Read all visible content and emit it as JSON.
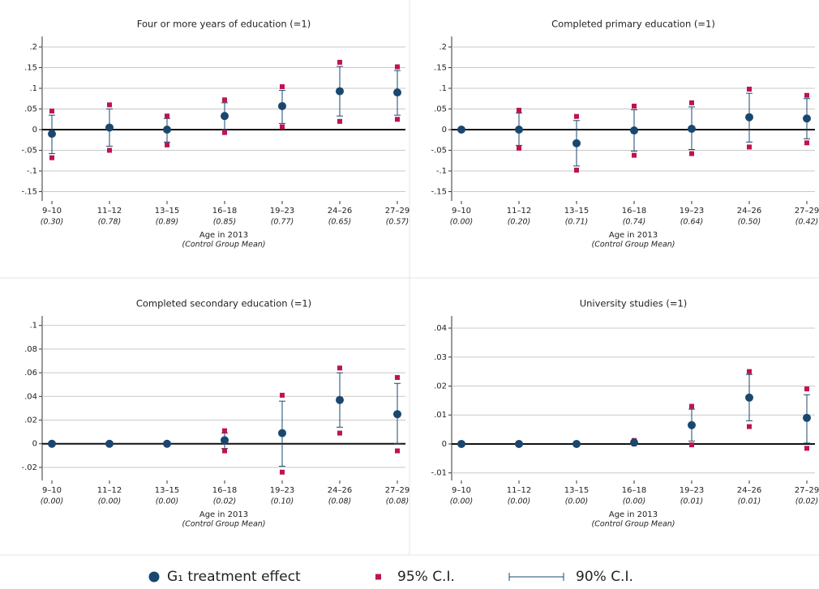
{
  "legend": [
    {
      "name": "G₁ treatment effect",
      "color": "#1a476f"
    },
    {
      "name": "95% C.I.",
      "color": "#c0134f"
    },
    {
      "name": "90% C.I.",
      "color": "#1a476f"
    }
  ],
  "chart_data": [
    {
      "type": "errorbar",
      "title": "Four or more years of education (=1)",
      "categories": [
        "9–10",
        "11–12",
        "13–15",
        "16–18",
        "19–23",
        "24–26",
        "27–29"
      ],
      "sublabels": [
        "(0.30)",
        "(0.78)",
        "(0.89)",
        "(0.85)",
        "(0.77)",
        "(0.65)",
        "(0.57)"
      ],
      "xlabel": "Age in 2013",
      "xlabel_note": "(Control Group Mean)",
      "estimate": [
        -0.01,
        0.005,
        0.0,
        0.033,
        0.057,
        0.093,
        0.09
      ],
      "ci95_low": [
        -0.068,
        -0.05,
        -0.037,
        -0.007,
        0.007,
        0.02,
        0.025
      ],
      "ci95_high": [
        0.045,
        0.06,
        0.033,
        0.072,
        0.104,
        0.163,
        0.152
      ],
      "ci90_low": [
        -0.058,
        -0.04,
        -0.03,
        0.0,
        0.015,
        0.033,
        0.035
      ],
      "ci90_high": [
        0.035,
        0.05,
        0.027,
        0.065,
        0.095,
        0.153,
        0.143
      ],
      "ylim": [
        -0.1725,
        0.2255
      ],
      "yticks": [
        {
          "value": 0.2,
          "label": ".2"
        },
        {
          "value": 0.15,
          "label": ".15"
        },
        {
          "value": 0.1,
          "label": ".1"
        },
        {
          "value": 0.05,
          "label": ".05"
        },
        0,
        {
          "value": -0.05,
          "label": "-.05"
        },
        {
          "value": -0.1,
          "label": "-.1"
        },
        {
          "value": -0.15,
          "label": "-.15"
        }
      ],
      "grid": true
    },
    {
      "type": "errorbar",
      "title": "Completed primary education (=1)",
      "categories": [
        "9–10",
        "11–12",
        "13–15",
        "16–18",
        "19–23",
        "24–26",
        "27–29"
      ],
      "sublabels": [
        "(0.00)",
        "(0.20)",
        "(0.71)",
        "(0.74)",
        "(0.64)",
        "(0.50)",
        "(0.42)"
      ],
      "xlabel": "Age in 2013",
      "xlabel_note": "(Control Group Mean)",
      "estimate": [
        0,
        0.0,
        -0.033,
        -0.002,
        0.002,
        0.03,
        0.027
      ],
      "ci95_low": [
        0,
        -0.045,
        -0.098,
        -0.062,
        -0.058,
        -0.042,
        -0.032
      ],
      "ci95_high": [
        0,
        0.047,
        0.032,
        0.057,
        0.065,
        0.098,
        0.083
      ],
      "ci90_low": [
        0,
        -0.038,
        -0.088,
        -0.052,
        -0.048,
        -0.03,
        -0.022
      ],
      "ci90_high": [
        0,
        0.04,
        0.022,
        0.048,
        0.055,
        0.088,
        0.075
      ],
      "ylim": [
        -0.1725,
        0.2255
      ],
      "yticks": [
        {
          "value": 0.2,
          "label": ".2"
        },
        {
          "value": 0.15,
          "label": ".15"
        },
        {
          "value": 0.1,
          "label": ".1"
        },
        {
          "value": 0.05,
          "label": ".05"
        },
        0,
        {
          "value": -0.05,
          "label": "-.05"
        },
        {
          "value": -0.1,
          "label": "-.1"
        },
        {
          "value": -0.15,
          "label": "-.15"
        }
      ],
      "grid": true
    },
    {
      "type": "errorbar",
      "title": "Completed secondary education (=1)",
      "categories": [
        "9–10",
        "11–12",
        "13–15",
        "16–18",
        "19–23",
        "24–26",
        "27–29"
      ],
      "sublabels": [
        "(0.00)",
        "(0.00)",
        "(0.00)",
        "(0.02)",
        "(0.10)",
        "(0.08)",
        "(0.08)"
      ],
      "xlabel": "Age in 2013",
      "xlabel_note": "(Control Group Mean)",
      "estimate": [
        0,
        0,
        0,
        0.003,
        0.009,
        0.037,
        0.025
      ],
      "ci95_low": [
        0,
        0,
        0,
        -0.006,
        -0.024,
        0.009,
        -0.006
      ],
      "ci95_high": [
        0,
        0,
        0,
        0.011,
        0.041,
        0.064,
        0.056
      ],
      "ci90_low": [
        0,
        0,
        0,
        -0.004,
        -0.019,
        0.014,
        0.0
      ],
      "ci90_high": [
        0,
        0,
        0,
        0.009,
        0.036,
        0.06,
        0.051
      ],
      "ylim": [
        -0.031,
        0.108
      ],
      "yticks": [
        {
          "value": 0.1,
          "label": ".1"
        },
        {
          "value": 0.08,
          "label": ".08"
        },
        {
          "value": 0.06,
          "label": ".06"
        },
        {
          "value": 0.04,
          "label": ".04"
        },
        {
          "value": 0.02,
          "label": ".02"
        },
        0,
        {
          "value": -0.02,
          "label": "-.02"
        }
      ],
      "grid": true
    },
    {
      "type": "errorbar",
      "title": "University studies (=1)",
      "categories": [
        "9–10",
        "11–12",
        "13–15",
        "16–18",
        "19–23",
        "24–26",
        "27–29"
      ],
      "sublabels": [
        "(0.00)",
        "(0.00)",
        "(0.00)",
        "(0.00)",
        "(0.01)",
        "(0.01)",
        "(0.02)"
      ],
      "xlabel": "Age in 2013",
      "xlabel_note": "(Control Group Mean)",
      "estimate": [
        0,
        0,
        0,
        0.0005,
        0.0065,
        0.016,
        0.009
      ],
      "ci95_low": [
        0,
        0,
        0,
        0.0,
        -0.0003,
        0.006,
        -0.0015
      ],
      "ci95_high": [
        0,
        0,
        0,
        0.0012,
        0.013,
        0.025,
        0.019
      ],
      "ci90_low": [
        0,
        0,
        0,
        0.0002,
        0.001,
        0.008,
        0.0003
      ],
      "ci90_high": [
        0,
        0,
        0,
        0.001,
        0.012,
        0.024,
        0.017
      ],
      "ylim": [
        -0.0126,
        0.0442
      ],
      "yticks": [
        {
          "value": 0.04,
          "label": ".04"
        },
        {
          "value": 0.03,
          "label": ".03"
        },
        {
          "value": 0.02,
          "label": ".02"
        },
        {
          "value": 0.01,
          "label": ".01"
        },
        0,
        {
          "value": -0.01,
          "label": "-.01"
        }
      ],
      "grid": true
    }
  ]
}
